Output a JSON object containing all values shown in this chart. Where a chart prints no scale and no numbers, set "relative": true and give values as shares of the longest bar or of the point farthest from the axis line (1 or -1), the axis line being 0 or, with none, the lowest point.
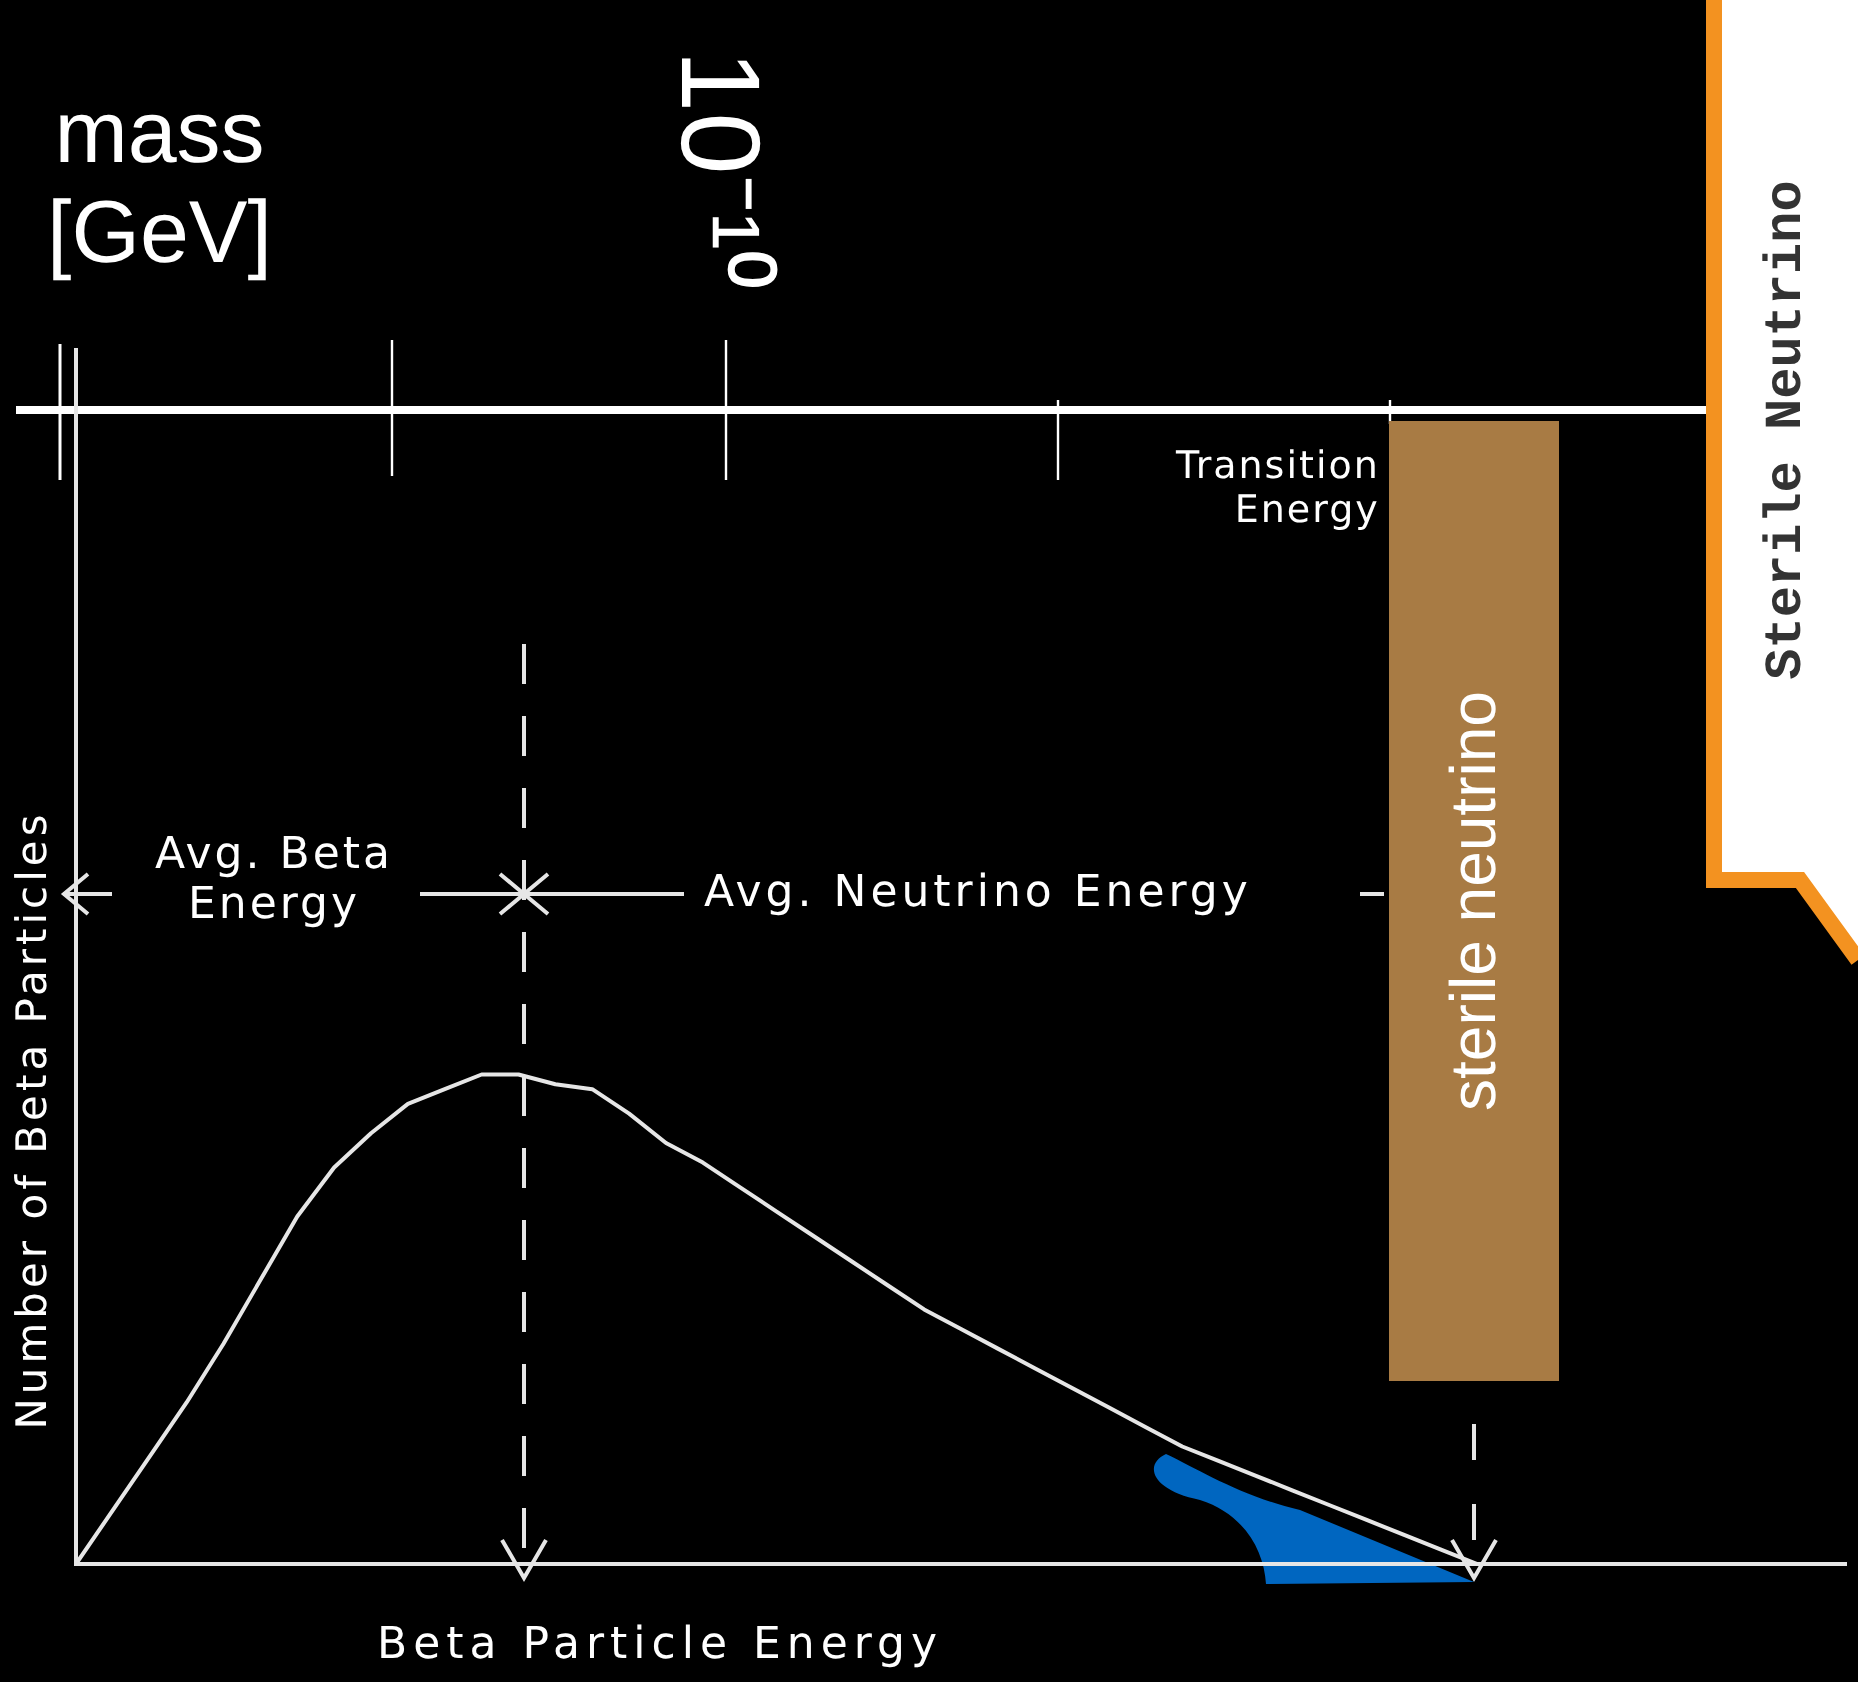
{
  "chart_data": {
    "type": "line",
    "xlabel": "Beta Particle Energy",
    "ylabel": "Number of Beta Particles",
    "annotations": [
      "mass\n[GeV]",
      "10⁻¹⁰",
      "Avg. Beta\nEnergy",
      "Avg. Neutrino Energy",
      "Transition\nEnergy",
      "sterile neutrino",
      "Sterile Neutrino"
    ],
    "categories": [
      null,
      null,
      null,
      null,
      null,
      null,
      null,
      null,
      null,
      null,
      null,
      null,
      null,
      null,
      null,
      null,
      null,
      null,
      null,
      null,
      null,
      null,
      null,
      null,
      null,
      null,
      null,
      null,
      null,
      null,
      null,
      null,
      null,
      null,
      null,
      null,
      null,
      null,
      null,
      null,
      null,
      null,
      null,
      null,
      null,
      null,
      null,
      null,
      null
    ],
    "values": [
      0,
      0.11,
      0.22,
      0.33,
      0.45,
      0.58,
      0.71,
      0.81,
      0.88,
      0.94,
      0.97,
      1,
      1,
      0.98,
      0.97,
      0.92,
      0.86,
      0.82,
      0.77,
      0.72,
      0.67,
      0.62,
      0.57,
      0.52,
      0.48,
      0.44,
      0.4,
      0.36,
      0.32,
      0.28,
      0.24,
      0.21,
      0.18,
      0.15,
      0.12,
      0.09,
      0.06,
      0.03,
      0,
      null,
      null,
      null,
      null,
      null,
      null,
      null,
      null,
      null,
      null
    ],
    "color": "#e6e6e6",
    "relative": true,
    "marker": "none",
    "line_style": "solid",
    "tick_labels": false
  }
}
